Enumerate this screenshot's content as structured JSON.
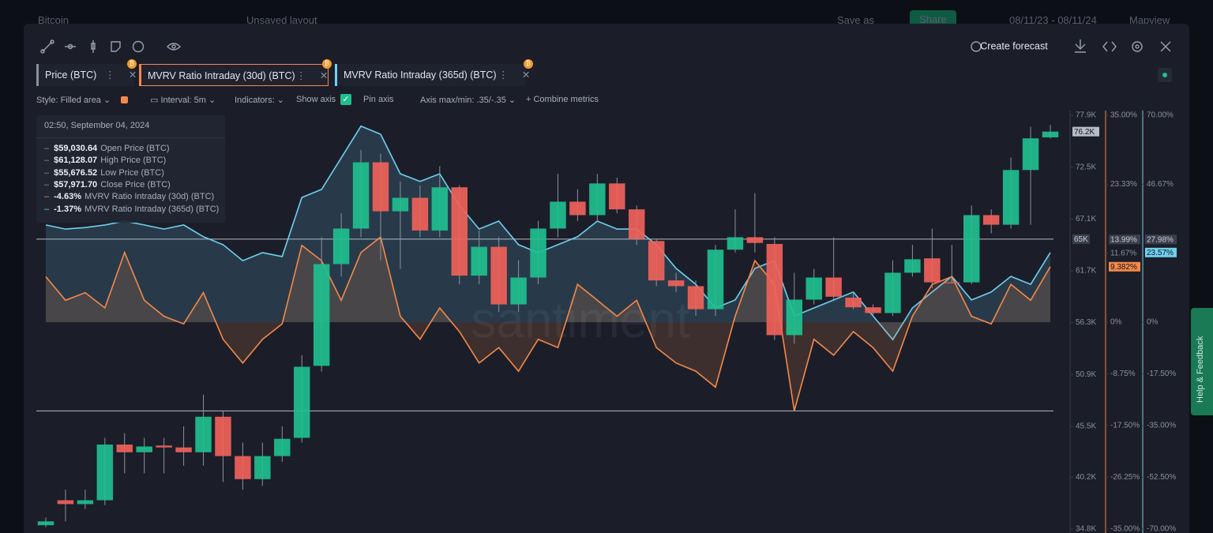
{
  "topbar": {
    "asset": "Bitcoin",
    "layout": "Unsaved layout",
    "save": "Save as",
    "share": "Share",
    "dates": "08/11/23 - 08/11/24",
    "view": "Mapview"
  },
  "toolbar": {
    "create_forecast": "Create forecast"
  },
  "settings": {
    "style": "Style: Filled area",
    "interval": "Interval: 5m",
    "indicators": "Indicators:",
    "show_axis": "Show axis",
    "pin_axis": "Pin axis",
    "axis_minmax": "Axis max/min: .35/-.35",
    "combine": "Combine metrics"
  },
  "tooltip": {
    "time": "02:50, September 04, 2024",
    "rows": [
      {
        "value": "$59,030.64",
        "label": "Open Price (BTC)"
      },
      {
        "value": "$61,128.07",
        "label": "High Price (BTC)"
      },
      {
        "value": "$55,676.52",
        "label": "Low Price (BTC)"
      },
      {
        "value": "$57,971.70",
        "label": "Close Price (BTC)"
      },
      {
        "value": "-4.63%"
      },
      {
        "value": "-1.37%"
      }
    ]
  },
  "watermark": "santiment",
  "help_tab": "Help & Feedback",
  "chart_data": {
    "type": "candlestick",
    "price_name": "Price (BTC)",
    "up_color": "#1fbf8f",
    "down_color": "#f0625a",
    "open": [
      35200,
      37800,
      37400,
      37800,
      43600,
      42800,
      43500,
      43300,
      42800,
      46500,
      42400,
      40000,
      42400,
      44300,
      51800,
      62400,
      66100,
      73000,
      67900,
      69300,
      65900,
      70400,
      61200,
      64200,
      58200,
      61000,
      66100,
      68900,
      67500,
      70800,
      68100,
      64800,
      60700,
      60100,
      57700,
      63900,
      65200,
      64500,
      55000,
      58700,
      61000,
      58900,
      57900,
      57300,
      61500,
      63000,
      60500,
      60500,
      67500,
      66500,
      72200,
      75600
    ],
    "high": [
      36000,
      38900,
      38900,
      44300,
      44800,
      44300,
      44300,
      45500,
      48800,
      47100,
      43800,
      43800,
      45500,
      52900,
      65200,
      67700,
      74300,
      73900,
      71000,
      70600,
      72600,
      70600,
      65900,
      65200,
      62800,
      66900,
      71800,
      70200,
      71800,
      71400,
      68500,
      65000,
      61500,
      60700,
      64400,
      68100,
      69800,
      65200,
      61500,
      61900,
      65200,
      59500,
      58200,
      62800,
      64400,
      66100,
      64400,
      68500,
      68100,
      73500,
      76700,
      76900
    ],
    "low": [
      35000,
      35600,
      36900,
      37300,
      40600,
      40600,
      40600,
      41400,
      41400,
      39700,
      38900,
      39300,
      41800,
      43800,
      51200,
      61100,
      65200,
      62800,
      61900,
      65200,
      65200,
      60300,
      60300,
      57400,
      57400,
      60300,
      65200,
      66900,
      66900,
      67700,
      64400,
      60100,
      59500,
      57000,
      57000,
      63600,
      63600,
      54500,
      54100,
      58200,
      58700,
      57700,
      57000,
      57000,
      61100,
      59900,
      60400,
      60300,
      65600,
      66100,
      66500,
      75500
    ],
    "close": [
      35600,
      37400,
      37800,
      43600,
      42800,
      43400,
      43300,
      42800,
      46500,
      42400,
      40000,
      42400,
      44200,
      51700,
      62400,
      66100,
      73000,
      67900,
      69300,
      65900,
      70400,
      61200,
      64200,
      58200,
      61000,
      66100,
      68900,
      67500,
      70800,
      68100,
      65000,
      60700,
      60100,
      57700,
      63900,
      65200,
      64600,
      55000,
      58700,
      61000,
      59000,
      57900,
      57300,
      61500,
      62900,
      60500,
      60400,
      67500,
      66500,
      72200,
      75500,
      76200
    ],
    "ylim": [
      34800,
      77900
    ],
    "yticks": [
      {
        "value": 77900,
        "label": "77.9K"
      },
      {
        "value": 72500,
        "label": "72.5K"
      },
      {
        "value": 67100,
        "label": "67.1K"
      },
      {
        "value": 61700,
        "label": "61.7K"
      },
      {
        "value": 56300,
        "label": "56.3K"
      },
      {
        "value": 50900,
        "label": "50.9K"
      },
      {
        "value": 45500,
        "label": "45.5K"
      },
      {
        "value": 40200,
        "label": "40.2K"
      },
      {
        "value": 34800,
        "label": "34.8K"
      }
    ],
    "y2lim": [
      -35,
      35
    ],
    "y2ticks": [
      {
        "value": 35,
        "label": "35.00%"
      },
      {
        "value": 23.33,
        "label": "23.33%"
      },
      {
        "value": 11.67,
        "label": "11.67%"
      },
      {
        "value": 0,
        "label": "0%"
      },
      {
        "value": -8.75,
        "label": "-8.75%"
      },
      {
        "value": -17.5,
        "label": "-17.50%"
      },
      {
        "value": -26.25,
        "label": "-26.25%"
      },
      {
        "value": -35,
        "label": "-35.00%"
      }
    ],
    "y3lim": [
      -70,
      70
    ],
    "y3ticks": [
      {
        "value": 70,
        "label": "70.00%"
      },
      {
        "value": 46.67,
        "label": "46.67%"
      },
      {
        "value": 0,
        "label": "0%"
      },
      {
        "value": -17.5,
        "label": "-17.50%"
      },
      {
        "value": -35,
        "label": "-35.00%"
      },
      {
        "value": -52.5,
        "label": "-52.50%"
      },
      {
        "value": -70,
        "label": "-70.00%"
      }
    ],
    "series": [
      {
        "name": "MVRV Ratio Intraday (30d) (BTC)",
        "color": "#f5894a",
        "axis": "y2",
        "values": [
          7.7,
          3.7,
          5,
          2.4,
          11.8,
          3.7,
          1,
          -0.3,
          5,
          -2.9,
          -6.9,
          -2.9,
          -0.3,
          13,
          10.4,
          3.7,
          11.8,
          14.4,
          1,
          -2.9,
          2.4,
          -1.6,
          -6.9,
          -4.3,
          -8.3,
          -2.9,
          -4.3,
          6.4,
          3.7,
          1,
          3.7,
          -4.3,
          -6.9,
          -8.3,
          -11,
          1,
          10.4,
          6.4,
          -15,
          -2.9,
          -5.6,
          -1.6,
          -4.3,
          -8.3,
          1,
          6.4,
          7.7,
          1,
          -0.3,
          6.4,
          3.7,
          9.382
        ]
      },
      {
        "name": "MVRV Ratio Intraday (365d) (BTC)",
        "color": "#6fd0f0",
        "axis": "y3",
        "values": [
          32.9,
          31.5,
          32,
          32.9,
          34.2,
          32.9,
          31.5,
          32.9,
          28.9,
          26.2,
          20.8,
          23.5,
          22.2,
          42.2,
          44.9,
          55.6,
          66.3,
          63.6,
          50.2,
          47.6,
          50.2,
          39.5,
          31.5,
          34.2,
          26.2,
          23.5,
          26.2,
          28.9,
          34.2,
          31.5,
          31.5,
          26.2,
          18.2,
          12.8,
          4.8,
          7.5,
          18.2,
          20.8,
          2.1,
          4.8,
          7.5,
          10.2,
          2.1,
          -5.9,
          4.8,
          10.2,
          15.5,
          7.5,
          10.2,
          15.5,
          12.8,
          23.57
        ]
      }
    ],
    "ref_lines": [
      {
        "value": 65000
      },
      {
        "value": 47100
      }
    ],
    "badges": [
      {
        "value": 76200,
        "label": "76.2K",
        "axis": "y",
        "color": "#b8bcc8"
      },
      {
        "value": 65000,
        "label": "65K",
        "axis": "y",
        "color": "#3a3f4e"
      },
      {
        "value": 13.99,
        "label": "13.99%",
        "axis": "y2",
        "color": "#3a3f4e"
      },
      {
        "value": 27.98,
        "label": "27.98%",
        "axis": "y3",
        "color": "#3a3f4e"
      },
      {
        "value": 9.382,
        "label": "9.382%",
        "axis": "y2",
        "color": "#f5894a"
      },
      {
        "value": 23.57,
        "label": "23.57%",
        "axis": "y3",
        "color": "#6fd0f0"
      }
    ]
  }
}
